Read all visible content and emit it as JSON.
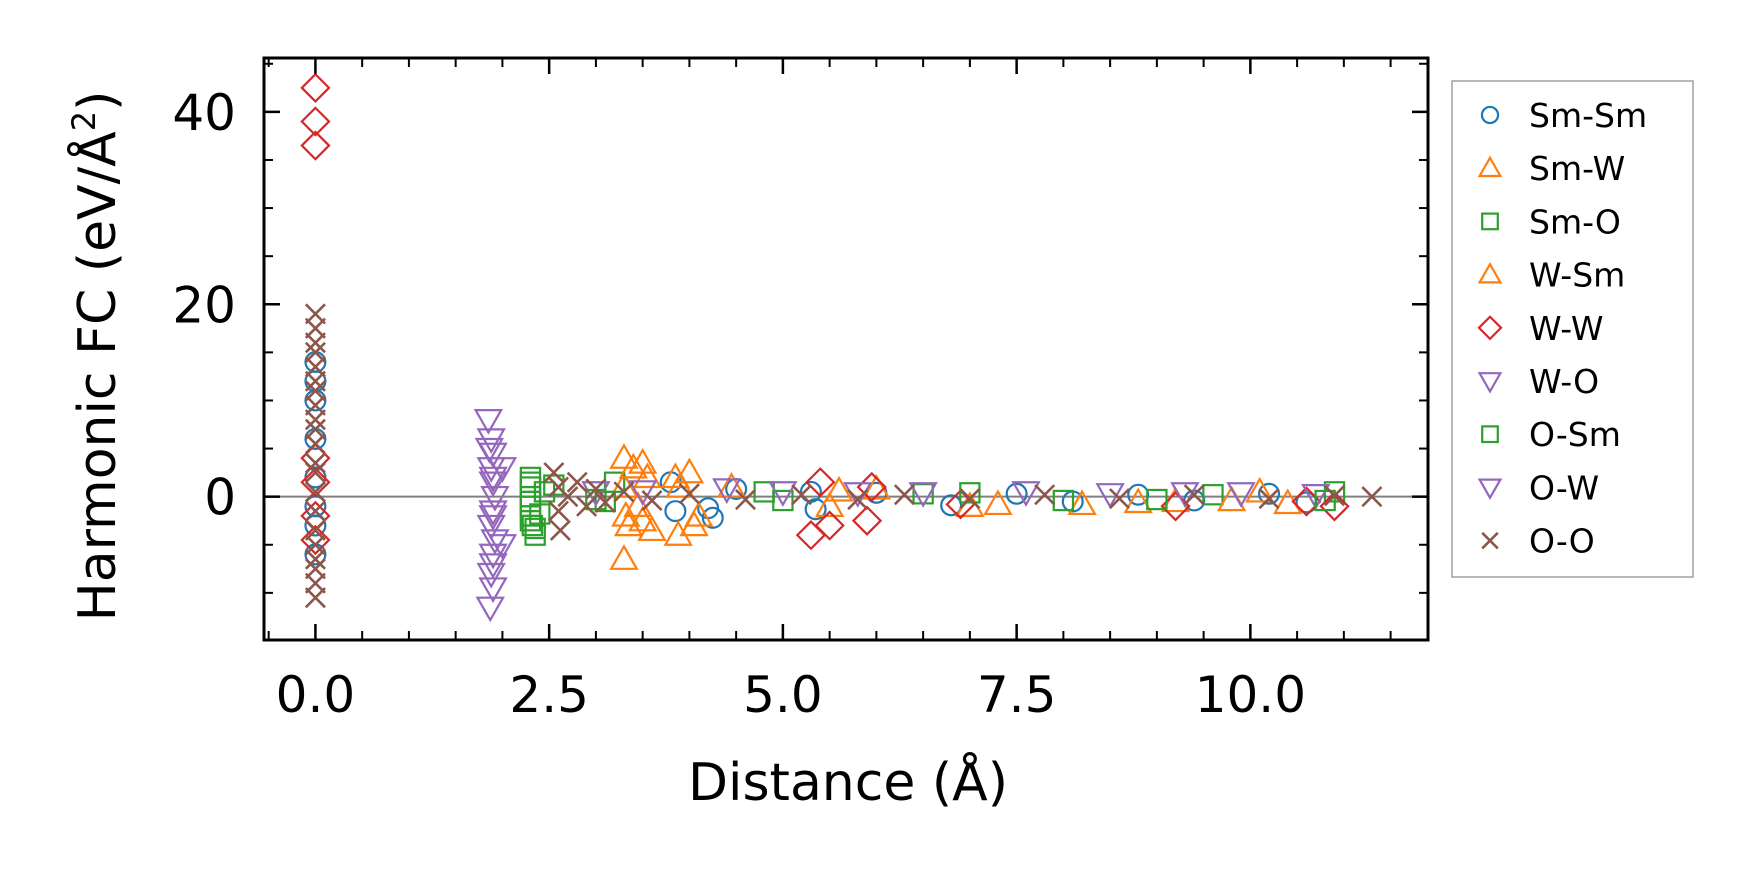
{
  "chart_data": {
    "type": "scatter",
    "xlabel": "Distance (Å)",
    "ylabel_main": "Harmonic FC (eV/Å",
    "ylabel_sup": "2",
    "ylabel_close": ")",
    "xlim": [
      -0.55,
      11.9
    ],
    "ylim": [
      -14.9,
      45.6
    ],
    "xticks": [
      0.0,
      2.5,
      5.0,
      7.5,
      10.0
    ],
    "xtick_labels": [
      "0.0",
      "2.5",
      "5.0",
      "7.5",
      "10.0"
    ],
    "xminor_step": 0.5,
    "yticks": [
      0,
      20,
      40
    ],
    "ytick_labels": [
      "0",
      "20",
      "40"
    ],
    "yminor_step": 5,
    "zero_line": true,
    "grid": false,
    "legend_position": "outside-right",
    "series": [
      {
        "name": "Sm-Sm",
        "marker": "circle",
        "color": "#1f77b4",
        "points": [
          [
            0,
            14
          ],
          [
            0,
            12
          ],
          [
            0,
            10
          ],
          [
            0,
            6
          ],
          [
            0,
            2
          ],
          [
            0,
            -1
          ],
          [
            0,
            -3
          ],
          [
            0,
            -6
          ],
          [
            3.8,
            1.5
          ],
          [
            3.85,
            -1.5
          ],
          [
            4.2,
            -1.2
          ],
          [
            4.25,
            -2.2
          ],
          [
            4.5,
            0.8
          ],
          [
            5.3,
            0.5
          ],
          [
            5.35,
            -1.3
          ],
          [
            6.0,
            0.4
          ],
          [
            6.8,
            -0.9
          ],
          [
            7.5,
            0.3
          ],
          [
            8.1,
            -0.5
          ],
          [
            8.8,
            0.2
          ],
          [
            9.4,
            -0.4
          ],
          [
            10.2,
            0.3
          ],
          [
            10.6,
            -0.6
          ]
        ]
      },
      {
        "name": "Sm-W",
        "marker": "triangle-up",
        "color": "#ff7f0e",
        "points": [
          [
            3.3,
            4
          ],
          [
            3.3,
            1
          ],
          [
            3.32,
            -2
          ],
          [
            3.35,
            -3
          ],
          [
            3.3,
            -6.5
          ],
          [
            3.5,
            3.5
          ],
          [
            3.5,
            -2.5
          ],
          [
            3.85,
            2
          ],
          [
            3.88,
            -4
          ],
          [
            4.0,
            2.5
          ],
          [
            4.05,
            -3
          ],
          [
            4.45,
            1
          ],
          [
            5.5,
            -1
          ],
          [
            6.0,
            0.8
          ],
          [
            7.0,
            -1
          ],
          [
            8.2,
            -0.8
          ],
          [
            9.2,
            -0.5
          ],
          [
            10.1,
            0.5
          ],
          [
            10.4,
            -0.7
          ]
        ]
      },
      {
        "name": "Sm-O",
        "marker": "square",
        "color": "#2ca02c",
        "points": [
          [
            2.3,
            2
          ],
          [
            2.3,
            1
          ],
          [
            2.3,
            0
          ],
          [
            2.3,
            -1
          ],
          [
            2.3,
            -2
          ],
          [
            2.32,
            -3
          ],
          [
            2.35,
            -3.3
          ],
          [
            2.4,
            -1.8
          ],
          [
            2.55,
            1.2
          ],
          [
            3.1,
            -0.5
          ],
          [
            3.2,
            1.5
          ],
          [
            4.8,
            0.5
          ],
          [
            6.5,
            0.3
          ],
          [
            8.0,
            -0.4
          ],
          [
            9.6,
            0.2
          ],
          [
            10.9,
            0.5
          ]
        ]
      },
      {
        "name": "W-Sm",
        "marker": "triangle-up",
        "color": "#ff7f0e",
        "points": [
          [
            3.4,
            3
          ],
          [
            3.45,
            -1
          ],
          [
            3.55,
            2
          ],
          [
            3.6,
            -3.5
          ],
          [
            3.9,
            1
          ],
          [
            4.1,
            -2
          ],
          [
            5.6,
            0.6
          ],
          [
            7.3,
            -0.8
          ],
          [
            8.8,
            -0.6
          ],
          [
            9.8,
            -0.4
          ]
        ]
      },
      {
        "name": "W-W",
        "marker": "diamond",
        "color": "#d62728",
        "points": [
          [
            0,
            42.5
          ],
          [
            0,
            39
          ],
          [
            0,
            36.5
          ],
          [
            0,
            4
          ],
          [
            0,
            1.5
          ],
          [
            0,
            -2
          ],
          [
            0,
            -4.5
          ],
          [
            5.3,
            -4
          ],
          [
            5.4,
            1.5
          ],
          [
            5.5,
            -3
          ],
          [
            5.9,
            -2.5
          ],
          [
            5.95,
            1
          ],
          [
            6.9,
            -0.8
          ],
          [
            9.2,
            -1
          ],
          [
            10.6,
            -0.5
          ],
          [
            10.9,
            -1
          ]
        ]
      },
      {
        "name": "W-O",
        "marker": "triangle-down",
        "color": "#9467bd",
        "points": [
          [
            1.85,
            8
          ],
          [
            1.88,
            6
          ],
          [
            1.9,
            4.5
          ],
          [
            1.88,
            3
          ],
          [
            1.9,
            1.5
          ],
          [
            1.92,
            0
          ],
          [
            1.9,
            -1.5
          ],
          [
            1.88,
            -3
          ],
          [
            1.92,
            -4.5
          ],
          [
            1.9,
            -6
          ],
          [
            1.88,
            -8
          ],
          [
            1.9,
            -9.5
          ],
          [
            1.87,
            -11.5
          ],
          [
            3.0,
            0.5
          ],
          [
            4.4,
            0.8
          ],
          [
            5.8,
            0.4
          ],
          [
            7.6,
            0.5
          ],
          [
            9.3,
            0.4
          ],
          [
            10.7,
            0.2
          ]
        ]
      },
      {
        "name": "O-Sm",
        "marker": "square",
        "color": "#2ca02c",
        "points": [
          [
            2.3,
            1.5
          ],
          [
            2.3,
            -0.5
          ],
          [
            2.3,
            -2.5
          ],
          [
            2.35,
            -4
          ],
          [
            2.45,
            0.5
          ],
          [
            3.0,
            -0.3
          ],
          [
            5.0,
            -0.4
          ],
          [
            7.0,
            0.4
          ],
          [
            9.0,
            -0.3
          ],
          [
            10.8,
            -0.4
          ]
        ]
      },
      {
        "name": "O-W",
        "marker": "triangle-down",
        "color": "#9467bd",
        "points": [
          [
            1.86,
            5
          ],
          [
            1.9,
            2
          ],
          [
            1.9,
            -2
          ],
          [
            1.9,
            -7
          ],
          [
            2.0,
            3
          ],
          [
            2.0,
            -5
          ],
          [
            3.5,
            0.6
          ],
          [
            5.0,
            0.5
          ],
          [
            6.5,
            0.4
          ],
          [
            8.5,
            0.3
          ],
          [
            9.9,
            0.4
          ]
        ]
      },
      {
        "name": "O-O",
        "marker": "x",
        "color": "#8c564b",
        "points": [
          [
            0,
            19
          ],
          [
            0,
            17.5
          ],
          [
            0,
            16
          ],
          [
            0,
            15
          ],
          [
            0,
            13.5
          ],
          [
            0,
            12
          ],
          [
            0,
            11
          ],
          [
            0,
            9.5
          ],
          [
            0,
            8
          ],
          [
            0,
            7
          ],
          [
            0,
            5.5
          ],
          [
            0,
            3.5
          ],
          [
            0,
            2.5
          ],
          [
            0,
            0.5
          ],
          [
            0,
            -1.5
          ],
          [
            0,
            -3.5
          ],
          [
            0,
            -5
          ],
          [
            0,
            -6.5
          ],
          [
            0,
            -7.5
          ],
          [
            0,
            -9
          ],
          [
            0,
            -10.5
          ],
          [
            2.55,
            2.5
          ],
          [
            2.6,
            1
          ],
          [
            2.6,
            -1.5
          ],
          [
            2.62,
            -3.5
          ],
          [
            2.7,
            0
          ],
          [
            2.8,
            1.5
          ],
          [
            2.9,
            -1
          ],
          [
            3.0,
            0.8
          ],
          [
            3.1,
            -0.6
          ],
          [
            3.3,
            0.5
          ],
          [
            3.6,
            -0.4
          ],
          [
            4.0,
            0.3
          ],
          [
            4.6,
            -0.3
          ],
          [
            5.2,
            0.2
          ],
          [
            5.8,
            -0.3
          ],
          [
            6.3,
            0.2
          ],
          [
            7.0,
            -0.2
          ],
          [
            7.8,
            0.2
          ],
          [
            8.6,
            -0.2
          ],
          [
            9.4,
            0.2
          ],
          [
            10.2,
            -0.2
          ],
          [
            10.9,
            0.1
          ],
          [
            11.3,
            0
          ]
        ]
      }
    ]
  }
}
